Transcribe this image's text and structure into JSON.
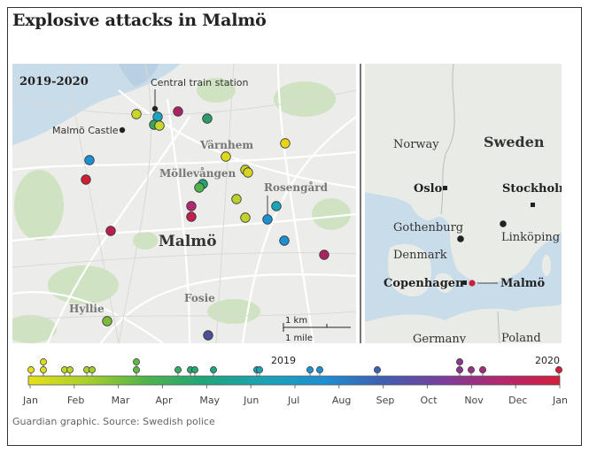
{
  "title": "Explosive attacks in Malmö",
  "city_map": {
    "period_label": "2019-2020",
    "places": {
      "central_station": "Central train station",
      "castle": "Malmö Castle",
      "varnhem": "Värnhem",
      "mollevangen": "Möllevången",
      "rosengard": "Rosengård",
      "malmo": "Malmö",
      "fosie": "Fosie",
      "hyllie": "Hyllie"
    },
    "scale": {
      "km_label": "1 km",
      "mile_label": "1 mile"
    }
  },
  "region_map": {
    "labels": {
      "norway": "Norway",
      "sweden": "Sweden",
      "oslo": "Oslo",
      "stockholm": "Stockholm",
      "gothenburg": "Gothenburg",
      "linkoping": "Linköping",
      "denmark": "Denmark",
      "copenhagen": "Copenhagen",
      "malmo": "Malmö",
      "germany": "Germany",
      "poland": "Poland"
    }
  },
  "timeline": {
    "year_start_label": "2019",
    "year_end_label": "2020",
    "months": [
      "Jan",
      "Feb",
      "Mar",
      "Apr",
      "May",
      "Jun",
      "Jul",
      "Aug",
      "Sep",
      "Oct",
      "Nov",
      "Dec",
      "Jan"
    ],
    "colors": [
      "#e8df1a",
      "#a8cf2e",
      "#4fb34a",
      "#1fa57a",
      "#1ba3b6",
      "#1d8fd2",
      "#3f5fb0",
      "#7a3e9c",
      "#b4266e",
      "#d21f3c"
    ]
  },
  "source": "Guardian graphic. Source: Swedish police"
}
